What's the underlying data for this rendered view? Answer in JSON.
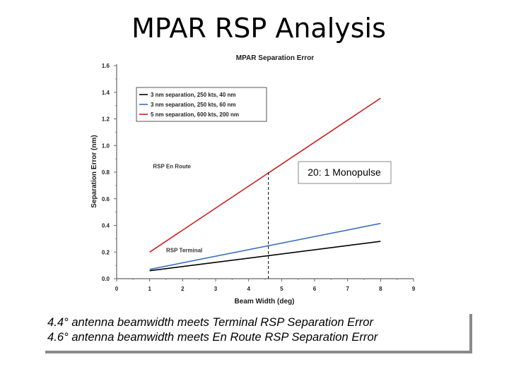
{
  "slide": {
    "title": "MPAR RSP Analysis",
    "callout_lines": [
      "4.4° antenna beamwidth meets Terminal RSP Separation Error",
      "4.6° antenna beamwidth meets En Route RSP Separation Error"
    ]
  },
  "chart_data": {
    "type": "line",
    "title": "MPAR Separation Error",
    "xlabel": "Beam Width (deg)",
    "ylabel": "Separation Error (nm)",
    "xlim": [
      0,
      9
    ],
    "ylim": [
      0.0,
      1.6
    ],
    "x_ticks": [
      0,
      1,
      2,
      3,
      4,
      5,
      6,
      7,
      8,
      9
    ],
    "y_ticks": [
      0.0,
      0.2,
      0.4,
      0.6,
      0.8,
      1.0,
      1.2,
      1.4,
      1.6
    ],
    "y_tick_labels": [
      "0.0",
      "0.2",
      "0.4",
      "0.6",
      "0.8",
      "1.0",
      "1.2",
      "1.4",
      "1.6"
    ],
    "grid": false,
    "legend_position": "top-left",
    "series": [
      {
        "name": "3 nm separation, 250 kts, 40 nm",
        "color": "#000000",
        "x": [
          1,
          8
        ],
        "y": [
          0.06,
          0.28
        ]
      },
      {
        "name": "3 nm separation, 250 kts, 60 nm",
        "color": "#3a6ebf",
        "x": [
          1,
          8
        ],
        "y": [
          0.07,
          0.415
        ]
      },
      {
        "name": "5 nm separation, 600 kts, 200 nm",
        "color": "#cc2222",
        "x": [
          1,
          8
        ],
        "y": [
          0.2,
          1.355
        ]
      }
    ],
    "annotations": [
      {
        "text": "RSP En Route",
        "x": 1.1,
        "y": 0.83
      },
      {
        "text": "RSP Terminal",
        "x": 1.5,
        "y": 0.2
      }
    ],
    "reference_line": {
      "x": 4.6,
      "y_from": 0.0,
      "y_to": 0.81,
      "style": "dashed",
      "color": "#000000"
    },
    "label_box": {
      "text": "20: 1 Monopulse"
    }
  }
}
